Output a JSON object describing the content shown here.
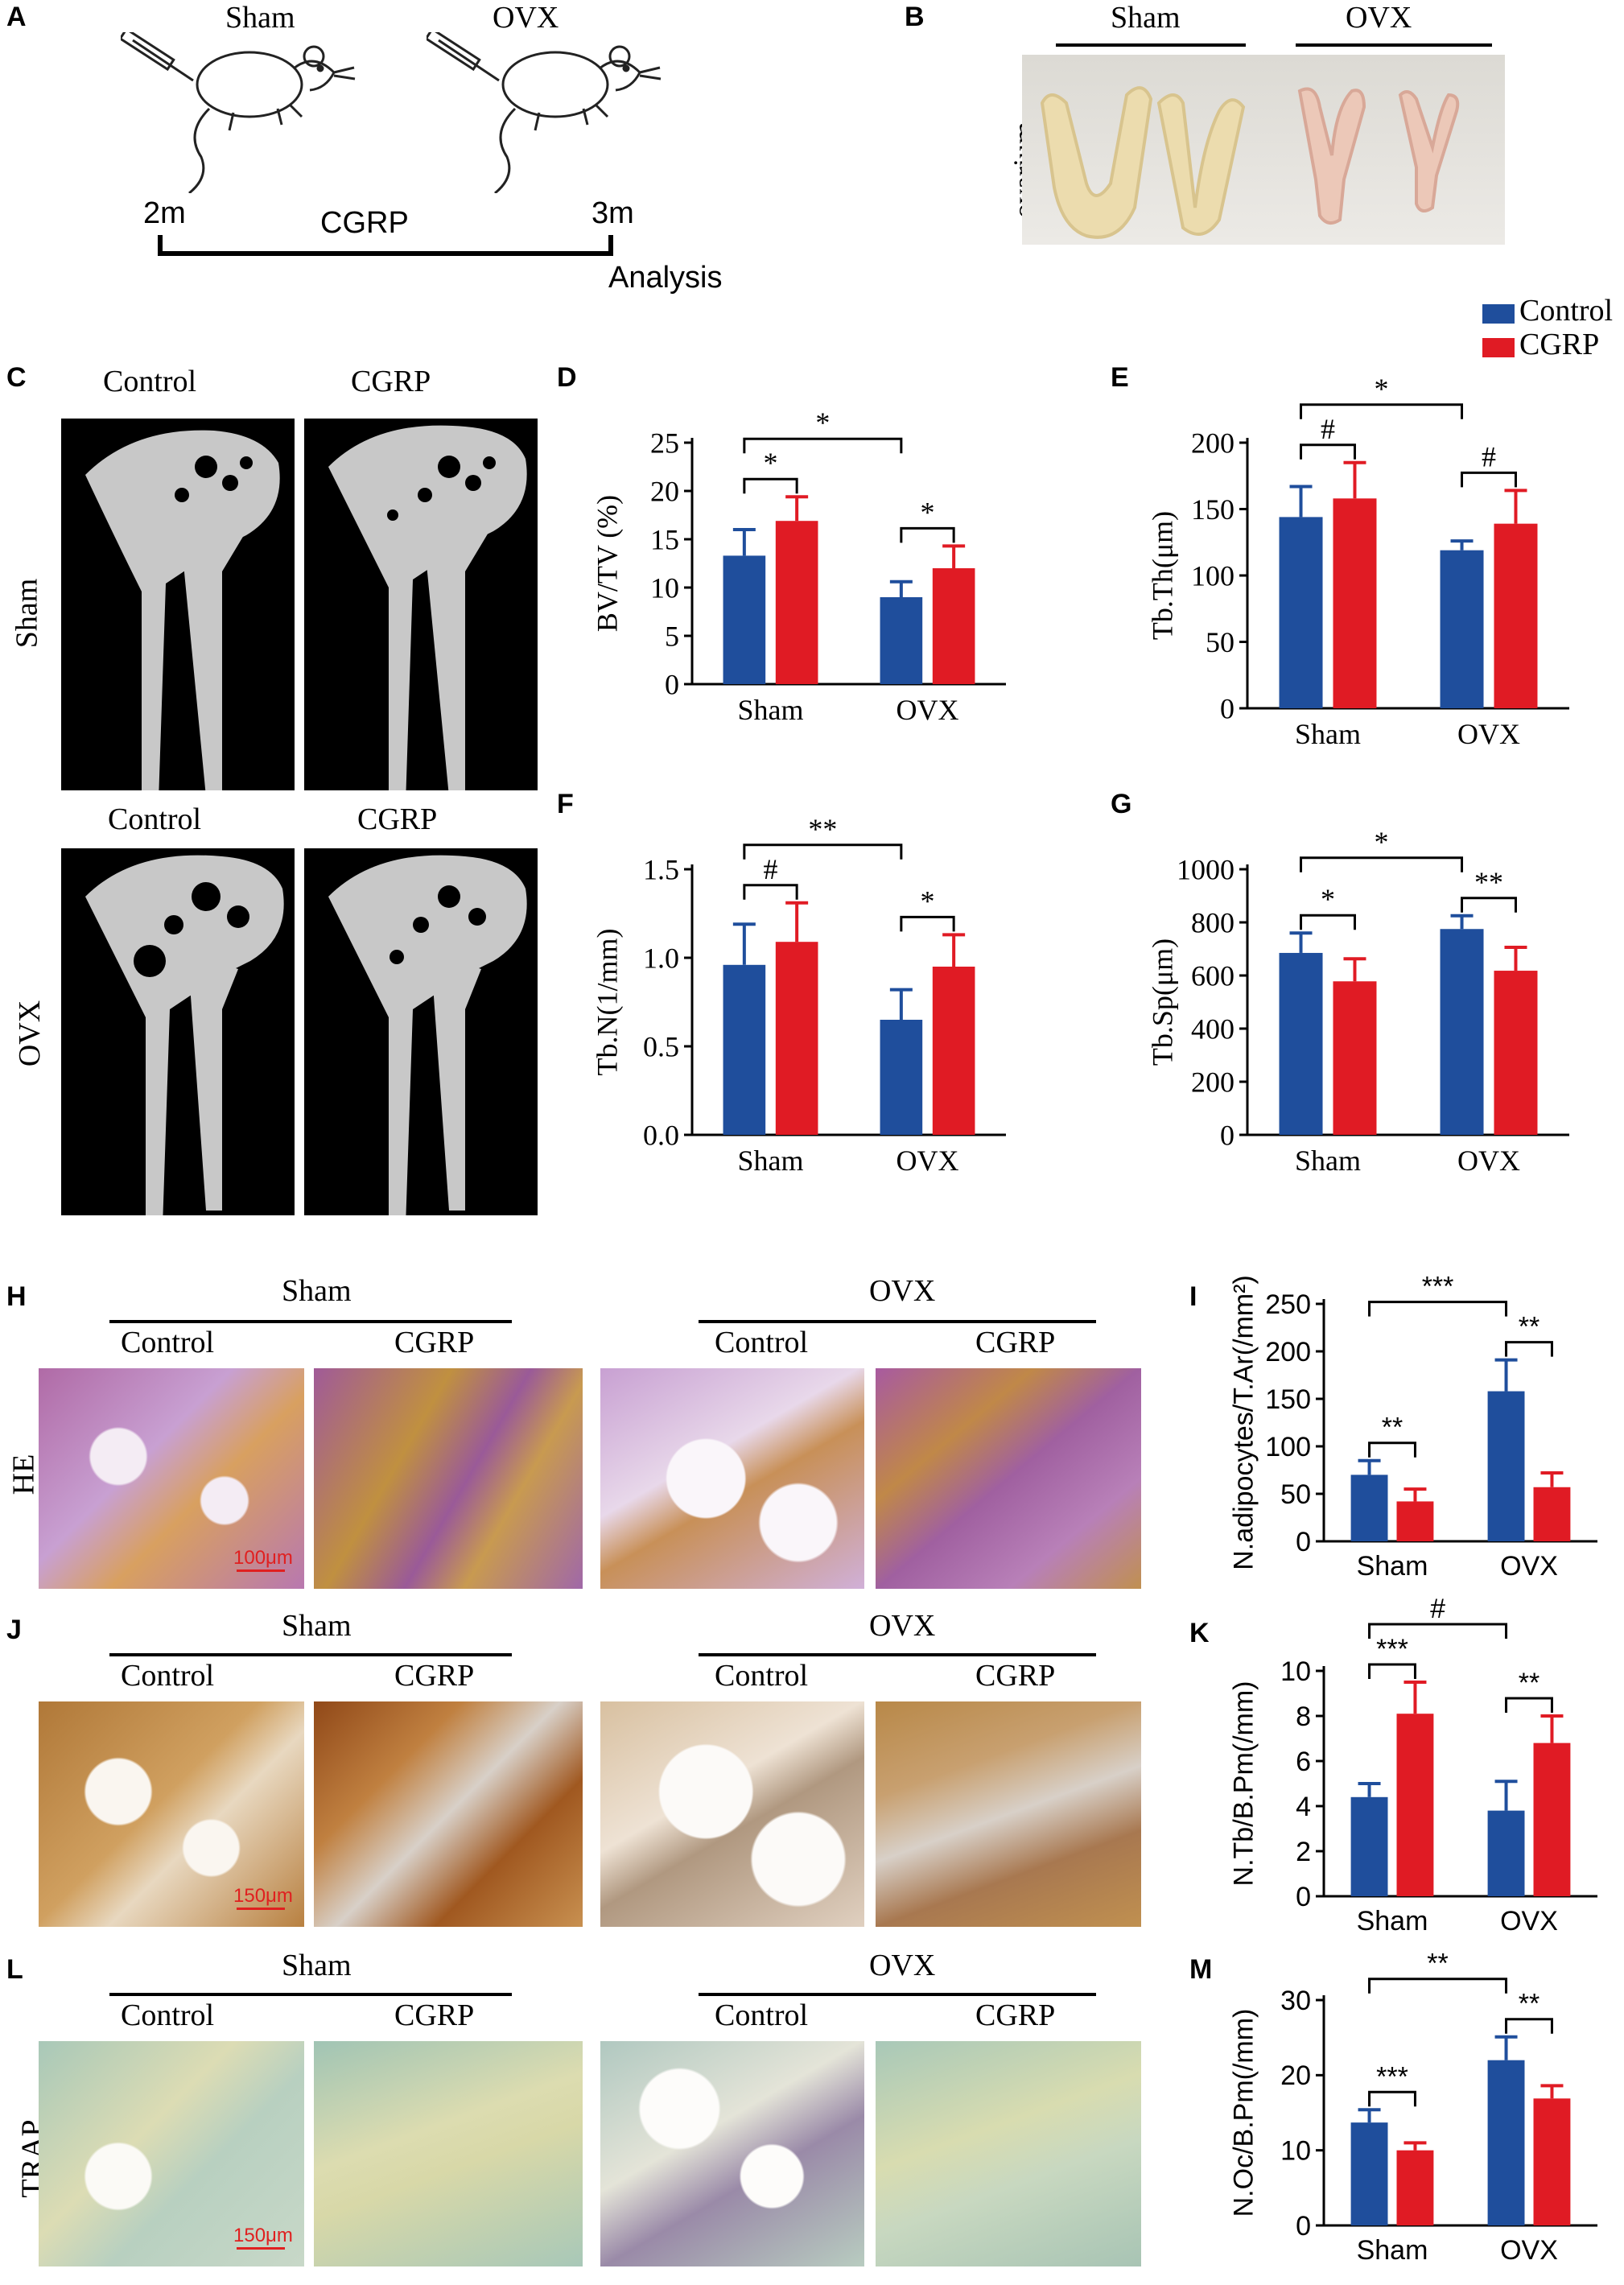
{
  "colors": {
    "control": "#1f4e9c",
    "cgrp": "#e01b24"
  },
  "panelA": {
    "letter": "A",
    "sham": "Sham",
    "ovx": "OVX",
    "start": "2m",
    "middle": "CGRP",
    "end": "3m",
    "analysis": "Analysis"
  },
  "panelB": {
    "letter": "B",
    "sham": "Sham",
    "ovx": "OVX",
    "ylabel": "ovarium"
  },
  "legend": {
    "control": "Control",
    "cgrp": "CGRP"
  },
  "panelC": {
    "letter": "C",
    "col1": "Control",
    "col2": "CGRP",
    "col1b": "Control",
    "col2b": "CGRP",
    "row1": "Sham",
    "row2": "OVX"
  },
  "histology": {
    "H": {
      "letter": "H",
      "group1": "Sham",
      "group2": "OVX",
      "c1": "Control",
      "c2": "CGRP",
      "c3": "Control",
      "c4": "CGRP",
      "row": "HE",
      "scale": "100μm"
    },
    "J": {
      "letter": "J",
      "group1": "Sham",
      "group2": "OVX",
      "c1": "Control",
      "c2": "CGRP",
      "c3": "Control",
      "c4": "CGRP",
      "scale": "150μm"
    },
    "L": {
      "letter": "L",
      "group1": "Sham",
      "group2": "OVX",
      "c1": "Control",
      "c2": "CGRP",
      "c3": "Control",
      "c4": "CGRP",
      "row": "TRAP",
      "scale": "150μm"
    }
  },
  "chart_data": [
    {
      "id": "D",
      "letter": "D",
      "type": "bar",
      "font": "serif",
      "categories": [
        "Sham",
        "OVX"
      ],
      "ylabel": "BV/TV (%)",
      "ylim": [
        0,
        25
      ],
      "yticks": [
        0,
        5,
        10,
        15,
        20,
        25
      ],
      "series": [
        {
          "name": "Control",
          "values": [
            13.3,
            9.0
          ],
          "errors": [
            2.7,
            1.6
          ]
        },
        {
          "name": "CGRP",
          "values": [
            16.9,
            12.0
          ],
          "errors": [
            2.5,
            2.3
          ]
        }
      ],
      "annotations": [
        {
          "label": "*",
          "type": "inner",
          "group": 0
        },
        {
          "label": "*",
          "type": "inner",
          "group": 1
        },
        {
          "label": "*",
          "type": "between"
        }
      ]
    },
    {
      "id": "E",
      "letter": "E",
      "type": "bar",
      "font": "serif",
      "categories": [
        "Sham",
        "OVX"
      ],
      "ylabel": "Tb.Th(μm)",
      "ylim": [
        0,
        200
      ],
      "yticks": [
        0,
        50,
        100,
        150,
        200
      ],
      "series": [
        {
          "name": "Control",
          "values": [
            144,
            119
          ],
          "errors": [
            23,
            7
          ]
        },
        {
          "name": "CGRP",
          "values": [
            158,
            139
          ],
          "errors": [
            27,
            25
          ]
        }
      ],
      "annotations": [
        {
          "label": "#",
          "type": "inner",
          "group": 0
        },
        {
          "label": "#",
          "type": "inner",
          "group": 1
        },
        {
          "label": "*",
          "type": "between"
        }
      ]
    },
    {
      "id": "F",
      "letter": "F",
      "type": "bar",
      "font": "serif",
      "categories": [
        "Sham",
        "OVX"
      ],
      "ylabel": "Tb.N(1/mm)",
      "ylim": [
        0,
        1.5
      ],
      "yticks": [
        "0.0",
        "0.5",
        "1.0",
        "1.5"
      ],
      "series": [
        {
          "name": "Control",
          "values": [
            0.96,
            0.65
          ],
          "errors": [
            0.23,
            0.17
          ]
        },
        {
          "name": "CGRP",
          "values": [
            1.09,
            0.95
          ],
          "errors": [
            0.22,
            0.18
          ]
        }
      ],
      "annotations": [
        {
          "label": "#",
          "type": "inner",
          "group": 0
        },
        {
          "label": "*",
          "type": "inner",
          "group": 1
        },
        {
          "label": "**",
          "type": "between"
        }
      ]
    },
    {
      "id": "G",
      "letter": "G",
      "type": "bar",
      "font": "serif",
      "categories": [
        "Sham",
        "OVX"
      ],
      "ylabel": "Tb.Sp(μm)",
      "ylim": [
        0,
        1000
      ],
      "yticks": [
        0,
        200,
        400,
        600,
        800,
        1000
      ],
      "series": [
        {
          "name": "Control",
          "values": [
            685,
            775
          ],
          "errors": [
            75,
            50
          ]
        },
        {
          "name": "CGRP",
          "values": [
            578,
            618
          ],
          "errors": [
            85,
            88
          ]
        }
      ],
      "annotations": [
        {
          "label": "*",
          "type": "inner",
          "group": 0
        },
        {
          "label": "**",
          "type": "inner",
          "group": 1
        },
        {
          "label": "*",
          "type": "between"
        }
      ]
    },
    {
      "id": "I",
      "letter": "I",
      "type": "bar",
      "font": "sans",
      "categories": [
        "Sham",
        "OVX"
      ],
      "ylabel": "N.adipocytes/T.Ar(/mm²)",
      "ylim": [
        0,
        250
      ],
      "yticks": [
        0,
        50,
        100,
        150,
        200,
        250
      ],
      "series": [
        {
          "name": "Control",
          "values": [
            70,
            158
          ],
          "errors": [
            15,
            33
          ]
        },
        {
          "name": "CGRP",
          "values": [
            42,
            57
          ],
          "errors": [
            13,
            15
          ]
        }
      ],
      "annotations": [
        {
          "label": "**",
          "type": "inner",
          "group": 0
        },
        {
          "label": "**",
          "type": "inner",
          "group": 1
        },
        {
          "label": "***",
          "type": "between"
        }
      ]
    },
    {
      "id": "K",
      "letter": "K",
      "type": "bar",
      "font": "sans",
      "categories": [
        "Sham",
        "OVX"
      ],
      "ylabel": "N.Tb/B.Pm(/mm)",
      "ylim": [
        0,
        10
      ],
      "yticks": [
        0,
        2,
        4,
        6,
        8,
        10
      ],
      "series": [
        {
          "name": "Control",
          "values": [
            4.4,
            3.8
          ],
          "errors": [
            0.6,
            1.3
          ]
        },
        {
          "name": "CGRP",
          "values": [
            8.1,
            6.8
          ],
          "errors": [
            1.4,
            1.2
          ]
        }
      ],
      "annotations": [
        {
          "label": "***",
          "type": "inner",
          "group": 0
        },
        {
          "label": "**",
          "type": "inner",
          "group": 1
        },
        {
          "label": "#",
          "type": "between"
        }
      ]
    },
    {
      "id": "M",
      "letter": "M",
      "type": "bar",
      "font": "sans",
      "categories": [
        "Sham",
        "OVX"
      ],
      "ylabel": "N.Oc/B.Pm(/mm)",
      "ylim": [
        0,
        30
      ],
      "yticks": [
        0,
        10,
        20,
        30
      ],
      "series": [
        {
          "name": "Control",
          "values": [
            13.7,
            22.0
          ],
          "errors": [
            1.7,
            3.1
          ]
        },
        {
          "name": "CGRP",
          "values": [
            10.0,
            16.9
          ],
          "errors": [
            1.0,
            1.7
          ]
        }
      ],
      "annotations": [
        {
          "label": "***",
          "type": "inner",
          "group": 0
        },
        {
          "label": "**",
          "type": "inner",
          "group": 1
        },
        {
          "label": "**",
          "type": "between"
        }
      ]
    }
  ]
}
